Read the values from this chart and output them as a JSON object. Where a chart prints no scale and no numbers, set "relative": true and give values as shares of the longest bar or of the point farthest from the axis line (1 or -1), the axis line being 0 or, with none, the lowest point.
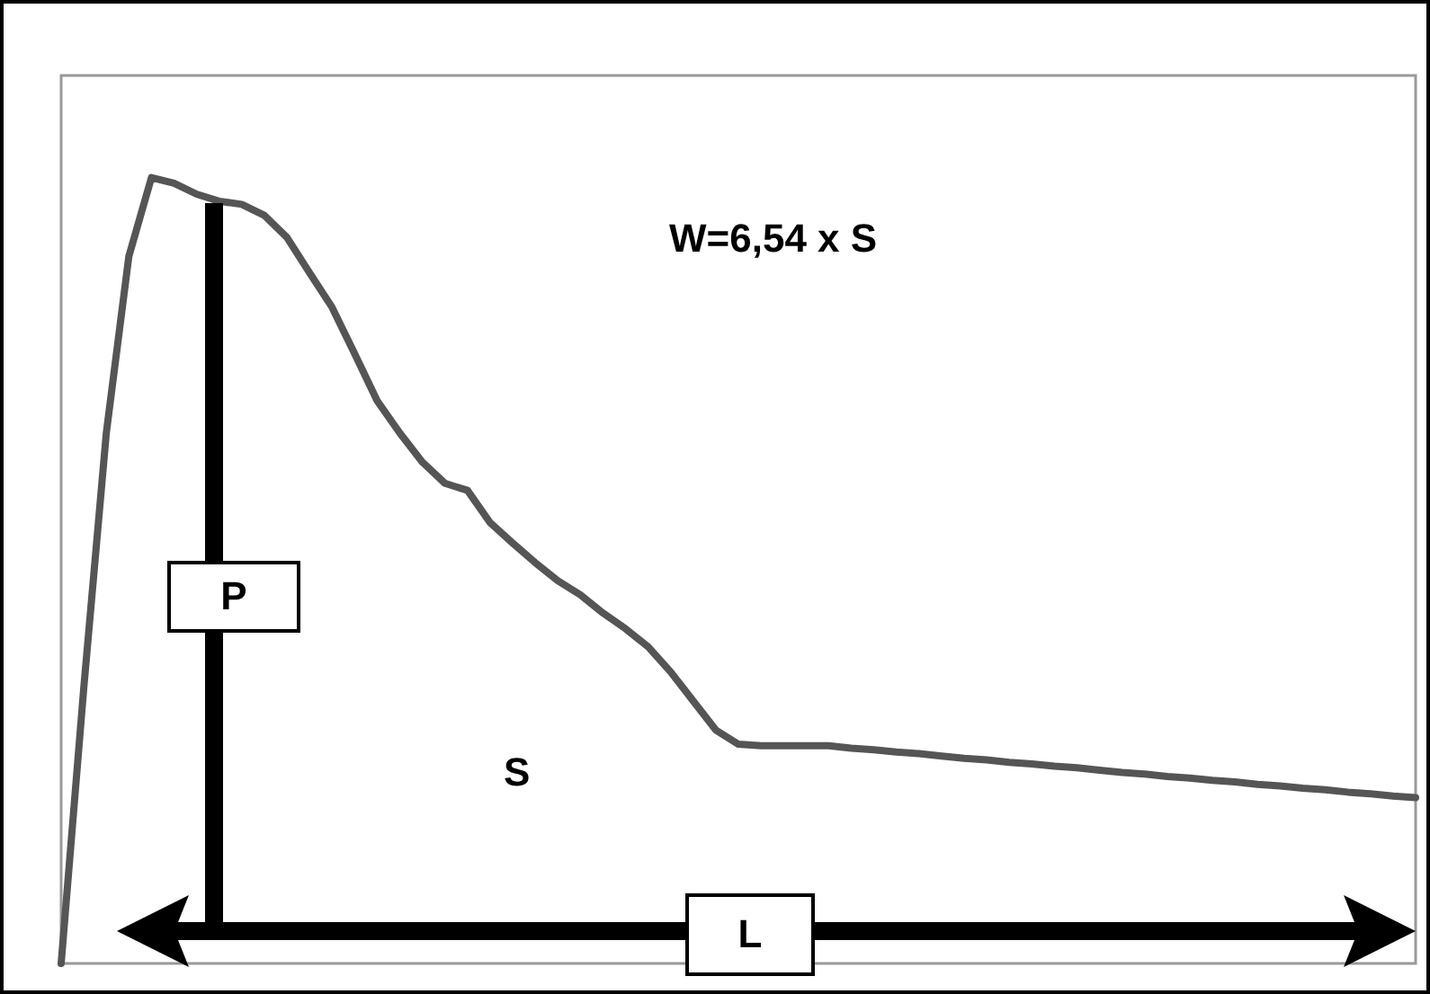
{
  "chart_data": {
    "type": "line",
    "relative": true,
    "color": "#555555",
    "marker": "none",
    "line_style": "solid",
    "categories": [
      null,
      null,
      null,
      null,
      null,
      null,
      null,
      null,
      null,
      null,
      null,
      null,
      null,
      null,
      null,
      null,
      null,
      null,
      null,
      null,
      null,
      null,
      null,
      null,
      null,
      null,
      null,
      null,
      null,
      null,
      null,
      null,
      null,
      null,
      null,
      null,
      null,
      null,
      null,
      null,
      null,
      null,
      null,
      null,
      null,
      null,
      null,
      null,
      null,
      null,
      null,
      null,
      null,
      null,
      null,
      null,
      null,
      null,
      null,
      null,
      null
    ],
    "values": [
      0,
      0.35,
      0.675,
      0.9,
      1,
      0.993,
      0.979,
      0.97,
      0.966,
      0.952,
      0.924,
      0.879,
      0.835,
      0.776,
      0.716,
      0.675,
      0.638,
      0.611,
      0.602,
      0.561,
      0.535,
      0.51,
      0.487,
      0.469,
      0.446,
      0.426,
      0.403,
      0.371,
      0.334,
      0.297,
      0.279,
      0.277,
      0.277,
      0.277,
      0.277,
      0.274,
      0.272,
      0.269,
      0.267,
      0.264,
      0.261,
      0.259,
      0.256,
      0.254,
      0.251,
      0.249,
      0.246,
      0.243,
      0.241,
      0.238,
      0.236,
      0.233,
      0.231,
      0.228,
      0.226,
      0.223,
      0.221,
      0.218,
      0.216,
      0.213,
      0.211
    ],
    "annotations": [
      "W=6,54 x S",
      "P",
      "S",
      "L"
    ]
  }
}
